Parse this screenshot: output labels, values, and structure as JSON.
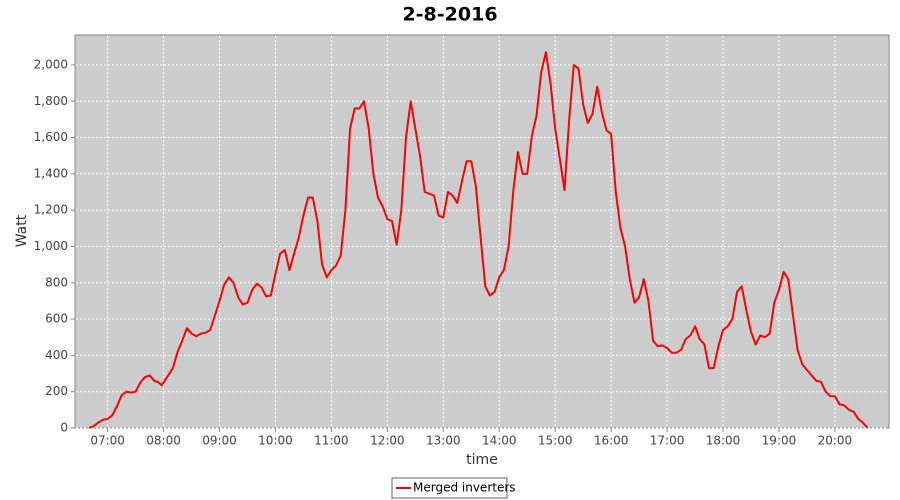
{
  "chart_data": {
    "type": "line",
    "title": "2-8-2016",
    "xlabel": "time",
    "ylabel": "Watt",
    "x": [
      "06:40",
      "06:45",
      "06:50",
      "06:55",
      "07:00",
      "07:05",
      "07:10",
      "07:15",
      "07:20",
      "07:25",
      "07:30",
      "07:35",
      "07:40",
      "07:45",
      "07:50",
      "07:55",
      "07:58",
      "08:05",
      "08:10",
      "08:15",
      "08:20",
      "08:25",
      "08:30",
      "08:35",
      "08:40",
      "08:45",
      "08:50",
      "08:55",
      "09:00",
      "09:05",
      "09:10",
      "09:15",
      "09:20",
      "09:25",
      "09:30",
      "09:35",
      "09:40",
      "09:45",
      "09:50",
      "09:55",
      "10:00",
      "10:05",
      "10:10",
      "10:15",
      "10:20",
      "10:25",
      "10:30",
      "10:35",
      "10:40",
      "10:45",
      "10:50",
      "10:55",
      "11:00",
      "11:05",
      "11:10",
      "11:15",
      "11:20",
      "11:25",
      "11:30",
      "11:35",
      "11:40",
      "11:45",
      "11:50",
      "11:55",
      "12:00",
      "12:05",
      "12:10",
      "12:15",
      "12:20",
      "12:25",
      "12:30",
      "12:35",
      "12:40",
      "12:45",
      "12:50",
      "12:55",
      "13:00",
      "13:05",
      "13:10",
      "13:15",
      "13:20",
      "13:25",
      "13:30",
      "13:35",
      "13:40",
      "13:45",
      "13:50",
      "13:55",
      "14:00",
      "14:05",
      "14:10",
      "14:15",
      "14:20",
      "14:25",
      "14:30",
      "14:35",
      "14:40",
      "14:45",
      "14:50",
      "14:55",
      "15:00",
      "15:05",
      "15:10",
      "15:15",
      "15:20",
      "15:25",
      "15:30",
      "15:35",
      "15:40",
      "15:45",
      "15:50",
      "15:55",
      "16:00",
      "16:05",
      "16:10",
      "16:15",
      "16:20",
      "16:25",
      "16:30",
      "16:35",
      "16:40",
      "16:45",
      "16:50",
      "16:55",
      "17:00",
      "17:05",
      "17:10",
      "17:15",
      "17:20",
      "17:25",
      "17:30",
      "17:35",
      "17:40",
      "17:45",
      "17:50",
      "17:55",
      "18:00",
      "18:05",
      "18:10",
      "18:15",
      "18:20",
      "18:25",
      "18:30",
      "18:35",
      "18:40",
      "18:45",
      "18:50",
      "18:55",
      "19:00",
      "19:05",
      "19:10",
      "19:15",
      "19:20",
      "19:25",
      "19:30",
      "19:35",
      "19:40",
      "19:45",
      "19:50",
      "19:55",
      "20:00",
      "20:05",
      "20:10",
      "20:15",
      "20:20",
      "20:25",
      "20:30",
      "20:35"
    ],
    "series": [
      {
        "name": "Merged inverters",
        "color": "#ff0000",
        "values": [
          0,
          10,
          30,
          45,
          50,
          70,
          120,
          180,
          200,
          195,
          200,
          250,
          280,
          290,
          260,
          250,
          235,
          290,
          330,
          420,
          480,
          550,
          520,
          505,
          520,
          525,
          540,
          620,
          700,
          790,
          830,
          800,
          720,
          680,
          690,
          760,
          795,
          775,
          725,
          730,
          850,
          960,
          980,
          870,
          960,
          1050,
          1170,
          1270,
          1270,
          1140,
          900,
          830,
          870,
          895,
          950,
          1200,
          1650,
          1760,
          1760,
          1800,
          1650,
          1400,
          1270,
          1220,
          1150,
          1140,
          1010,
          1200,
          1600,
          1800,
          1650,
          1500,
          1300,
          1290,
          1280,
          1170,
          1160,
          1300,
          1280,
          1240,
          1360,
          1470,
          1470,
          1330,
          1050,
          780,
          730,
          750,
          830,
          870,
          1000,
          1300,
          1520,
          1400,
          1400,
          1610,
          1720,
          1960,
          2070,
          1900,
          1650,
          1480,
          1310,
          1700,
          2000,
          1980,
          1780,
          1680,
          1730,
          1880,
          1740,
          1640,
          1620,
          1300,
          1100,
          1000,
          820,
          690,
          720,
          820,
          700,
          480,
          450,
          455,
          440,
          415,
          415,
          430,
          490,
          510,
          560,
          490,
          460,
          330,
          330,
          450,
          540,
          560,
          600,
          750,
          780,
          650,
          530,
          460,
          510,
          500,
          520,
          690,
          760,
          860,
          820,
          620,
          430,
          350,
          320,
          290,
          260,
          255,
          200,
          175,
          175,
          130,
          125,
          100,
          90,
          50,
          30,
          0
        ]
      }
    ],
    "xlim": [
      "06:25",
      "20:58"
    ],
    "xticks": [
      "07:00",
      "08:00",
      "09:00",
      "10:00",
      "11:00",
      "12:00",
      "13:00",
      "14:00",
      "15:00",
      "16:00",
      "17:00",
      "18:00",
      "19:00",
      "20:00"
    ],
    "ylim": [
      0,
      2165
    ],
    "yticks": [
      0,
      200,
      400,
      600,
      800,
      {
        "value": 1000,
        "label": "1,000"
      },
      {
        "value": 1200,
        "label": "1,200"
      },
      {
        "value": 1400,
        "label": "1,400"
      },
      {
        "value": 1600,
        "label": "1,600"
      },
      {
        "value": 1800,
        "label": "1,800"
      },
      {
        "value": 2000,
        "label": "2,000"
      }
    ],
    "grid": true,
    "legend": "bottom"
  }
}
